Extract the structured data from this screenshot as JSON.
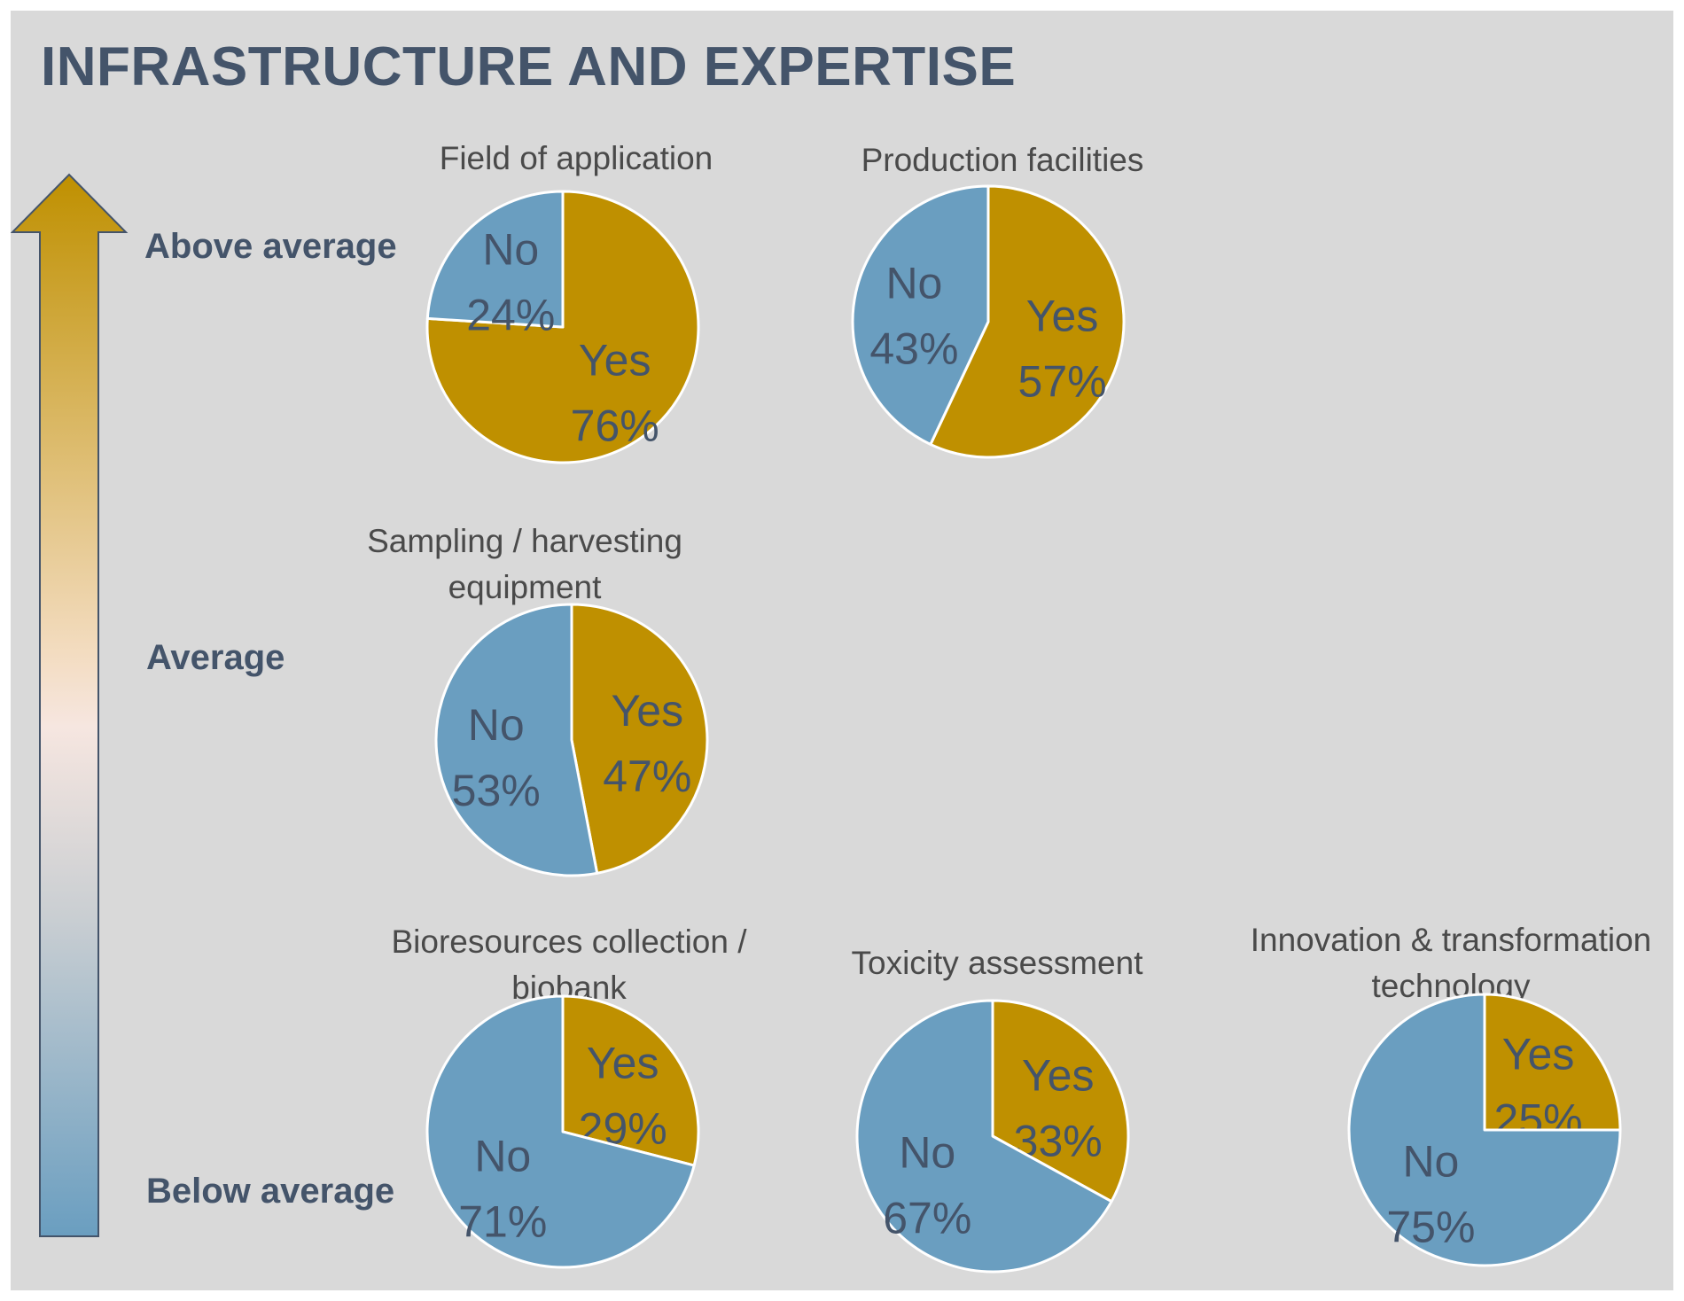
{
  "title": "INFRASTRUCTURE AND EXPERTISE",
  "colors": {
    "yes": "#bf9000",
    "no": "#6a9ec0",
    "text": "#44546a",
    "background": "#d9d9d9"
  },
  "levels": {
    "above": "Above average",
    "average": "Average",
    "below": "Below average"
  },
  "chart_data": {
    "type": "pie",
    "title": "INFRASTRUCTURE AND EXPERTISE",
    "pies": [
      {
        "title": "Field of application",
        "level": "Above average",
        "slices": [
          {
            "label": "Yes",
            "value": 76,
            "text": "76%"
          },
          {
            "label": "No",
            "value": 24,
            "text": "24%"
          }
        ]
      },
      {
        "title": "Production facilities",
        "level": "Above average",
        "slices": [
          {
            "label": "Yes",
            "value": 57,
            "text": "57%"
          },
          {
            "label": "No",
            "value": 43,
            "text": "43%"
          }
        ]
      },
      {
        "title": "Sampling / harvesting equipment",
        "level": "Average",
        "slices": [
          {
            "label": "Yes",
            "value": 47,
            "text": "47%"
          },
          {
            "label": "No",
            "value": 53,
            "text": "53%"
          }
        ]
      },
      {
        "title": "Bioresources collection / biobank",
        "level": "Below average",
        "slices": [
          {
            "label": "Yes",
            "value": 29,
            "text": "29%"
          },
          {
            "label": "No",
            "value": 71,
            "text": "71%"
          }
        ]
      },
      {
        "title": "Toxicity assessment",
        "level": "Below average",
        "slices": [
          {
            "label": "Yes",
            "value": 33,
            "text": "33%"
          },
          {
            "label": "No",
            "value": 67,
            "text": "67%"
          }
        ]
      },
      {
        "title": "Innovation & transformation technology",
        "level": "Below average",
        "slices": [
          {
            "label": "Yes",
            "value": 25,
            "text": "25%"
          },
          {
            "label": "No",
            "value": 75,
            "text": "75%"
          }
        ]
      }
    ]
  }
}
